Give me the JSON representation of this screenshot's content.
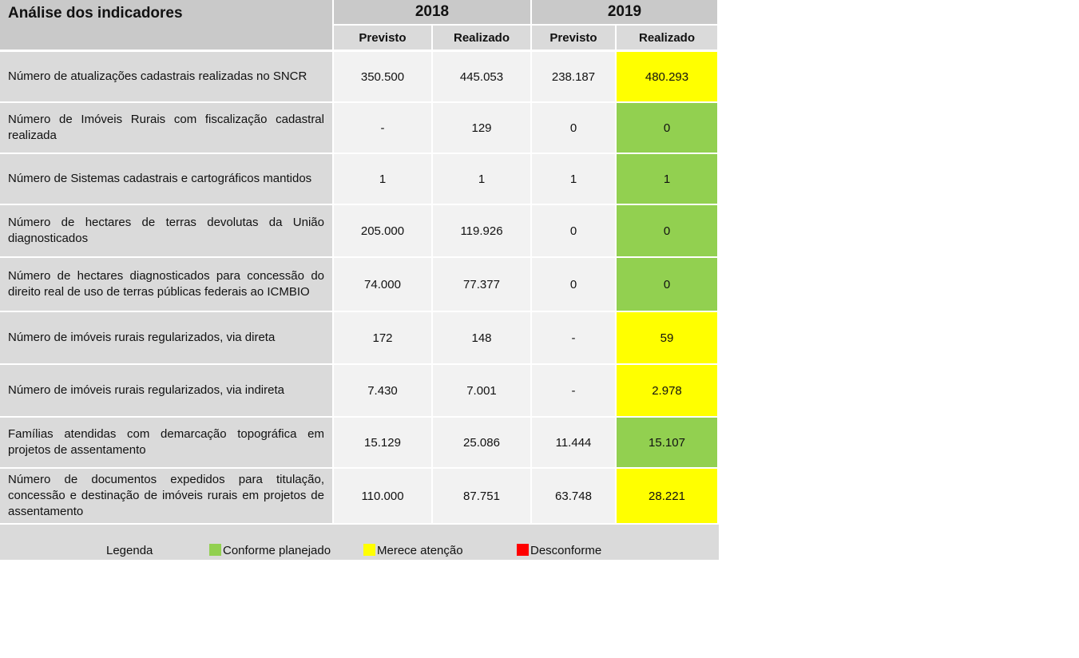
{
  "table": {
    "title": "Análise dos indicadores",
    "years": [
      "2018",
      "2019"
    ],
    "subheaders": [
      "Previsto",
      "Realizado",
      "Previsto",
      "Realizado"
    ],
    "rows": [
      {
        "label": "Número de atualizações cadastrais realizadas no SNCR",
        "p2018": "350.500",
        "r2018": "445.053",
        "p2019": "238.187",
        "r2019": "480.293",
        "status": "Merece atenção",
        "status_color": "#ffff00"
      },
      {
        "label": "Número de Imóveis Rurais com fiscalização cadastral realizada",
        "p2018": "-",
        "r2018": "129",
        "p2019": "0",
        "r2019": "0",
        "status": "Conforme planejado",
        "status_color": "#92d050"
      },
      {
        "label": "Número de Sistemas cadastrais e cartográficos mantidos",
        "p2018": "1",
        "r2018": "1",
        "p2019": "1",
        "r2019": "1",
        "status": "Conforme planejado",
        "status_color": "#92d050"
      },
      {
        "label": "Número de hectares de terras devolutas da União diagnosticados",
        "p2018": "205.000",
        "r2018": "119.926",
        "p2019": "0",
        "r2019": "0",
        "status": "Conforme planejado",
        "status_color": "#92d050"
      },
      {
        "label": "Número de hectares diagnosticados para concessão do direito real de uso de terras públicas federais ao ICMBIO",
        "p2018": "74.000",
        "r2018": "77.377",
        "p2019": "0",
        "r2019": "0",
        "status": "Conforme planejado",
        "status_color": "#92d050"
      },
      {
        "label": "Número de imóveis rurais regularizados, via direta",
        "p2018": "172",
        "r2018": "148",
        "p2019": "-",
        "r2019": "59",
        "status": "Merece atenção",
        "status_color": "#ffff00"
      },
      {
        "label": "Número de imóveis rurais regularizados, via indireta",
        "p2018": "7.430",
        "r2018": "7.001",
        "p2019": "-",
        "r2019": "2.978",
        "status": "Merece atenção",
        "status_color": "#ffff00"
      },
      {
        "label": "Famílias atendidas com demarcação topográfica em projetos de assentamento",
        "p2018": "15.129",
        "r2018": "25.086",
        "p2019": "11.444",
        "r2019": "15.107",
        "status": "Conforme planejado",
        "status_color": "#92d050"
      },
      {
        "label": "Número de documentos expedidos para titulação, concessão e destinação de imóveis rurais em projetos de assentamento",
        "p2018": "110.000",
        "r2018": "87.751",
        "p2019": "63.748",
        "r2019": "28.221",
        "status": "Merece atenção",
        "status_color": "#ffff00"
      }
    ]
  },
  "legend": {
    "title": "Legenda",
    "items": [
      {
        "label": "Conforme planejado",
        "color": "#92d050"
      },
      {
        "label": "Merece atenção",
        "color": "#ffff00"
      },
      {
        "label": "Desconforme",
        "color": "#ff0000"
      }
    ]
  }
}
